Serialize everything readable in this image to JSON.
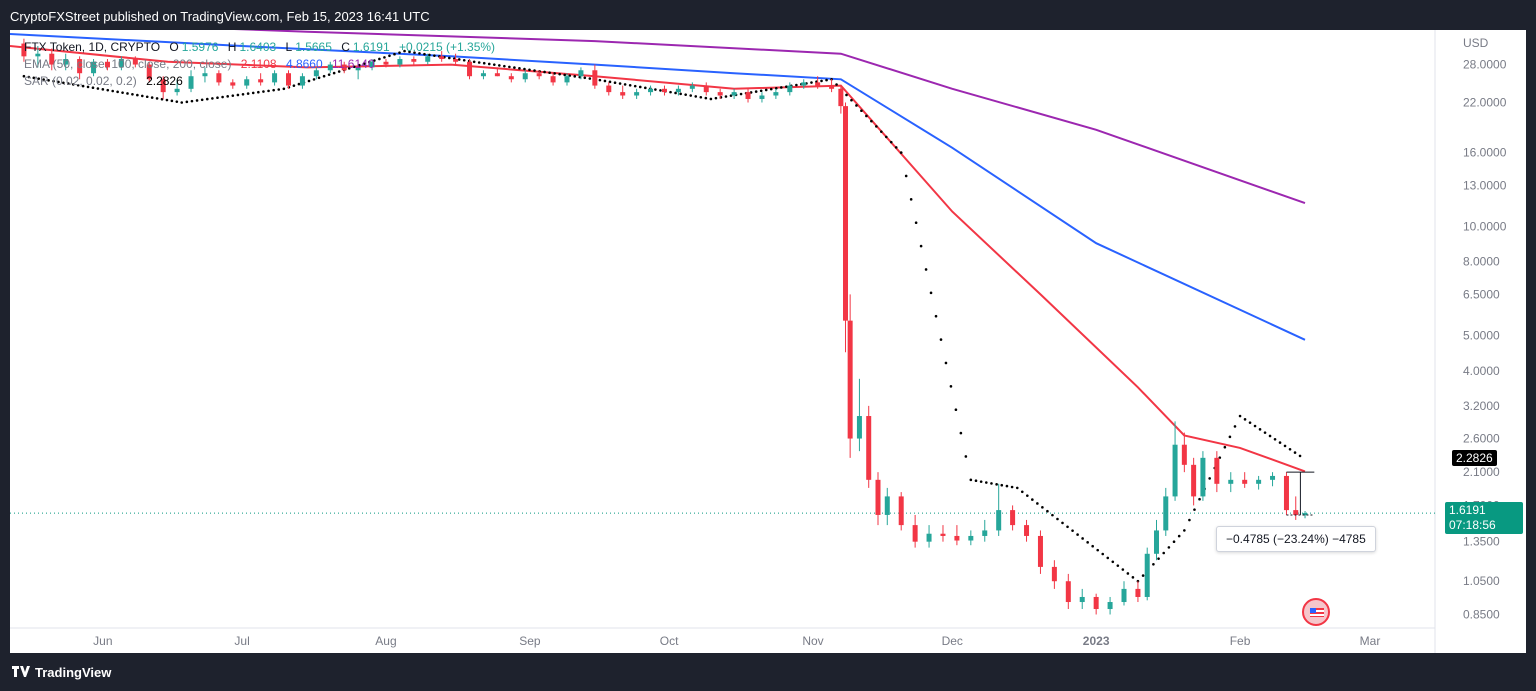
{
  "header": {
    "published_text": "CryptoFXStreet published on TradingView.com, Feb 15, 2023 16:41 UTC"
  },
  "legend": {
    "symbol": "FTX Token, 1D, CRYPTO",
    "ohlc": [
      {
        "k": "O",
        "v": "1.5976"
      },
      {
        "k": "H",
        "v": "1.6403"
      },
      {
        "k": "L",
        "v": "1.5665"
      },
      {
        "k": "C",
        "v": "1.6191"
      }
    ],
    "change": "+0.0215 (+1.35%)",
    "ema_label": "EMA (50, close, 100, close, 200, close)",
    "ema_values": [
      "2.1108",
      "4.8660",
      "11.6140"
    ],
    "sar_label": "SAR (0.02, 0.02, 0.2)",
    "sar_value": "2.2826"
  },
  "axis": {
    "currency": "USD",
    "y_ticks": [
      "28.0000",
      "22.0000",
      "16.0000",
      "13.0000",
      "10.0000",
      "8.0000",
      "6.5000",
      "5.0000",
      "4.0000",
      "3.2000",
      "2.6000",
      "2.1000",
      "1.7000",
      "1.3500",
      "1.0500",
      "0.8500"
    ],
    "x_ticks": [
      "Jun",
      "Jul",
      "Aug",
      "Sep",
      "Oct",
      "Nov",
      "Dec",
      "2023",
      "Feb",
      "Mar"
    ]
  },
  "price_labels": {
    "sar": "2.2826",
    "last": "1.6191",
    "countdown": "07:18:56"
  },
  "measure": {
    "text": "−0.4785 (−23.24%) −4785"
  },
  "footer": {
    "brand": "TradingView"
  },
  "colors": {
    "up": "#26a69a",
    "down": "#f23645",
    "ema50": "#f23645",
    "ema100": "#2962ff",
    "ema200": "#9c27b0",
    "sar": "#000000"
  },
  "chart_data": {
    "type": "candlestick",
    "title": "FTX Token, 1D, CRYPTO",
    "yscale": "log",
    "ylim": [
      0.78,
      34
    ],
    "xlim": [
      "2022-05-12",
      "2023-03-15"
    ],
    "candles": [
      {
        "t": "2022-05-15",
        "o": 32.0,
        "h": 33.0,
        "l": 28.5,
        "c": 29.5
      },
      {
        "t": "2022-05-18",
        "o": 29.5,
        "h": 31.5,
        "l": 27.5,
        "c": 30.0
      },
      {
        "t": "2022-05-21",
        "o": 30.0,
        "h": 31.0,
        "l": 27.0,
        "c": 28.0
      },
      {
        "t": "2022-05-24",
        "o": 28.0,
        "h": 30.0,
        "l": 27.0,
        "c": 29.0
      },
      {
        "t": "2022-05-27",
        "o": 29.0,
        "h": 29.5,
        "l": 25.5,
        "c": 26.5
      },
      {
        "t": "2022-05-30",
        "o": 26.5,
        "h": 29.0,
        "l": 26.0,
        "c": 28.5
      },
      {
        "t": "2022-06-02",
        "o": 28.5,
        "h": 29.0,
        "l": 27.0,
        "c": 27.5
      },
      {
        "t": "2022-06-05",
        "o": 27.5,
        "h": 29.5,
        "l": 27.0,
        "c": 29.0
      },
      {
        "t": "2022-06-08",
        "o": 29.0,
        "h": 29.5,
        "l": 27.5,
        "c": 28.0
      },
      {
        "t": "2022-06-11",
        "o": 28.0,
        "h": 28.5,
        "l": 25.0,
        "c": 25.5
      },
      {
        "t": "2022-06-14",
        "o": 25.5,
        "h": 26.0,
        "l": 22.5,
        "c": 23.5
      },
      {
        "t": "2022-06-17",
        "o": 23.5,
        "h": 25.5,
        "l": 23.0,
        "c": 24.0
      },
      {
        "t": "2022-06-20",
        "o": 24.0,
        "h": 27.0,
        "l": 23.5,
        "c": 26.0
      },
      {
        "t": "2022-06-23",
        "o": 26.0,
        "h": 27.5,
        "l": 25.0,
        "c": 26.5
      },
      {
        "t": "2022-06-26",
        "o": 26.5,
        "h": 27.0,
        "l": 24.5,
        "c": 25.0
      },
      {
        "t": "2022-06-29",
        "o": 25.0,
        "h": 25.5,
        "l": 24.0,
        "c": 24.5
      },
      {
        "t": "2022-07-02",
        "o": 24.5,
        "h": 26.0,
        "l": 24.0,
        "c": 25.5
      },
      {
        "t": "2022-07-05",
        "o": 25.5,
        "h": 26.5,
        "l": 24.5,
        "c": 25.0
      },
      {
        "t": "2022-07-08",
        "o": 25.0,
        "h": 27.0,
        "l": 24.5,
        "c": 26.5
      },
      {
        "t": "2022-07-11",
        "o": 26.5,
        "h": 27.0,
        "l": 24.0,
        "c": 24.5
      },
      {
        "t": "2022-07-14",
        "o": 24.5,
        "h": 26.5,
        "l": 24.0,
        "c": 26.0
      },
      {
        "t": "2022-07-17",
        "o": 26.0,
        "h": 27.5,
        "l": 25.5,
        "c": 27.0
      },
      {
        "t": "2022-07-20",
        "o": 27.0,
        "h": 28.5,
        "l": 26.5,
        "c": 28.0
      },
      {
        "t": "2022-07-23",
        "o": 28.0,
        "h": 28.5,
        "l": 26.5,
        "c": 27.0
      },
      {
        "t": "2022-07-26",
        "o": 27.0,
        "h": 28.0,
        "l": 25.5,
        "c": 27.5
      },
      {
        "t": "2022-07-29",
        "o": 27.5,
        "h": 29.0,
        "l": 27.0,
        "c": 28.5
      },
      {
        "t": "2022-08-01",
        "o": 28.5,
        "h": 29.0,
        "l": 27.5,
        "c": 28.0
      },
      {
        "t": "2022-08-04",
        "o": 28.0,
        "h": 29.5,
        "l": 27.5,
        "c": 29.0
      },
      {
        "t": "2022-08-07",
        "o": 29.0,
        "h": 29.5,
        "l": 28.0,
        "c": 28.5
      },
      {
        "t": "2022-08-10",
        "o": 28.5,
        "h": 30.0,
        "l": 28.0,
        "c": 29.5
      },
      {
        "t": "2022-08-13",
        "o": 29.5,
        "h": 30.5,
        "l": 28.5,
        "c": 29.0
      },
      {
        "t": "2022-08-16",
        "o": 29.0,
        "h": 30.0,
        "l": 28.0,
        "c": 28.5
      },
      {
        "t": "2022-08-19",
        "o": 28.5,
        "h": 29.0,
        "l": 25.5,
        "c": 26.0
      },
      {
        "t": "2022-08-22",
        "o": 26.0,
        "h": 27.0,
        "l": 25.5,
        "c": 26.5
      },
      {
        "t": "2022-08-25",
        "o": 26.5,
        "h": 27.5,
        "l": 26.0,
        "c": 26.0
      },
      {
        "t": "2022-08-28",
        "o": 26.0,
        "h": 26.5,
        "l": 25.0,
        "c": 25.5
      },
      {
        "t": "2022-08-31",
        "o": 25.5,
        "h": 27.0,
        "l": 25.0,
        "c": 26.5
      },
      {
        "t": "2022-09-03",
        "o": 26.5,
        "h": 27.0,
        "l": 25.5,
        "c": 26.0
      },
      {
        "t": "2022-09-06",
        "o": 26.0,
        "h": 26.5,
        "l": 24.5,
        "c": 25.0
      },
      {
        "t": "2022-09-09",
        "o": 25.0,
        "h": 26.5,
        "l": 24.5,
        "c": 26.0
      },
      {
        "t": "2022-09-12",
        "o": 26.0,
        "h": 27.5,
        "l": 25.5,
        "c": 27.0
      },
      {
        "t": "2022-09-15",
        "o": 27.0,
        "h": 28.0,
        "l": 24.0,
        "c": 24.5
      },
      {
        "t": "2022-09-18",
        "o": 24.5,
        "h": 25.0,
        "l": 23.0,
        "c": 23.5
      },
      {
        "t": "2022-09-21",
        "o": 23.5,
        "h": 24.5,
        "l": 22.5,
        "c": 23.0
      },
      {
        "t": "2022-09-24",
        "o": 23.0,
        "h": 24.0,
        "l": 22.5,
        "c": 23.5
      },
      {
        "t": "2022-09-27",
        "o": 23.5,
        "h": 24.5,
        "l": 23.0,
        "c": 24.0
      },
      {
        "t": "2022-09-30",
        "o": 24.0,
        "h": 24.5,
        "l": 23.0,
        "c": 23.5
      },
      {
        "t": "2022-10-03",
        "o": 23.5,
        "h": 24.5,
        "l": 23.0,
        "c": 24.0
      },
      {
        "t": "2022-10-06",
        "o": 24.0,
        "h": 25.0,
        "l": 23.5,
        "c": 24.5
      },
      {
        "t": "2022-10-09",
        "o": 24.5,
        "h": 25.0,
        "l": 23.0,
        "c": 23.5
      },
      {
        "t": "2022-10-12",
        "o": 23.5,
        "h": 24.0,
        "l": 22.5,
        "c": 23.0
      },
      {
        "t": "2022-10-15",
        "o": 23.0,
        "h": 24.0,
        "l": 22.5,
        "c": 23.5
      },
      {
        "t": "2022-10-18",
        "o": 23.5,
        "h": 24.0,
        "l": 22.0,
        "c": 22.5
      },
      {
        "t": "2022-10-21",
        "o": 22.5,
        "h": 23.5,
        "l": 22.0,
        "c": 23.0
      },
      {
        "t": "2022-10-24",
        "o": 23.0,
        "h": 24.0,
        "l": 22.5,
        "c": 23.5
      },
      {
        "t": "2022-10-27",
        "o": 23.5,
        "h": 25.0,
        "l": 23.0,
        "c": 24.5
      },
      {
        "t": "2022-10-30",
        "o": 24.5,
        "h": 25.5,
        "l": 24.0,
        "c": 25.0
      },
      {
        "t": "2022-11-02",
        "o": 25.0,
        "h": 26.0,
        "l": 24.0,
        "c": 24.5
      },
      {
        "t": "2022-11-05",
        "o": 24.5,
        "h": 25.5,
        "l": 23.5,
        "c": 24.0
      },
      {
        "t": "2022-11-07",
        "o": 24.0,
        "h": 24.5,
        "l": 20.5,
        "c": 21.5
      },
      {
        "t": "2022-11-08",
        "o": 21.5,
        "h": 22.0,
        "l": 4.5,
        "c": 5.5
      },
      {
        "t": "2022-11-09",
        "o": 5.5,
        "h": 6.5,
        "l": 2.3,
        "c": 2.6
      },
      {
        "t": "2022-11-11",
        "o": 2.6,
        "h": 3.8,
        "l": 2.4,
        "c": 3.0
      },
      {
        "t": "2022-11-13",
        "o": 3.0,
        "h": 3.2,
        "l": 1.9,
        "c": 2.0
      },
      {
        "t": "2022-11-15",
        "o": 2.0,
        "h": 2.1,
        "l": 1.5,
        "c": 1.6
      },
      {
        "t": "2022-11-17",
        "o": 1.6,
        "h": 1.9,
        "l": 1.5,
        "c": 1.8
      },
      {
        "t": "2022-11-20",
        "o": 1.8,
        "h": 1.85,
        "l": 1.45,
        "c": 1.5
      },
      {
        "t": "2022-11-23",
        "o": 1.5,
        "h": 1.6,
        "l": 1.3,
        "c": 1.35
      },
      {
        "t": "2022-11-26",
        "o": 1.35,
        "h": 1.5,
        "l": 1.3,
        "c": 1.42
      },
      {
        "t": "2022-11-29",
        "o": 1.42,
        "h": 1.5,
        "l": 1.35,
        "c": 1.4
      },
      {
        "t": "2022-12-02",
        "o": 1.4,
        "h": 1.5,
        "l": 1.32,
        "c": 1.36
      },
      {
        "t": "2022-12-05",
        "o": 1.36,
        "h": 1.45,
        "l": 1.32,
        "c": 1.4
      },
      {
        "t": "2022-12-08",
        "o": 1.4,
        "h": 1.55,
        "l": 1.35,
        "c": 1.45
      },
      {
        "t": "2022-12-11",
        "o": 1.45,
        "h": 1.95,
        "l": 1.4,
        "c": 1.65
      },
      {
        "t": "2022-12-14",
        "o": 1.65,
        "h": 1.7,
        "l": 1.45,
        "c": 1.5
      },
      {
        "t": "2022-12-17",
        "o": 1.5,
        "h": 1.55,
        "l": 1.35,
        "c": 1.4
      },
      {
        "t": "2022-12-20",
        "o": 1.4,
        "h": 1.45,
        "l": 1.1,
        "c": 1.15
      },
      {
        "t": "2022-12-23",
        "o": 1.15,
        "h": 1.2,
        "l": 1.0,
        "c": 1.05
      },
      {
        "t": "2022-12-26",
        "o": 1.05,
        "h": 1.1,
        "l": 0.88,
        "c": 0.92
      },
      {
        "t": "2022-12-29",
        "o": 0.92,
        "h": 1.0,
        "l": 0.88,
        "c": 0.95
      },
      {
        "t": "2023-01-01",
        "o": 0.95,
        "h": 0.97,
        "l": 0.85,
        "c": 0.88
      },
      {
        "t": "2023-01-04",
        "o": 0.88,
        "h": 0.95,
        "l": 0.85,
        "c": 0.92
      },
      {
        "t": "2023-01-07",
        "o": 0.92,
        "h": 1.05,
        "l": 0.9,
        "c": 1.0
      },
      {
        "t": "2023-01-10",
        "o": 1.0,
        "h": 1.05,
        "l": 0.92,
        "c": 0.95
      },
      {
        "t": "2023-01-12",
        "o": 0.95,
        "h": 1.3,
        "l": 0.93,
        "c": 1.25
      },
      {
        "t": "2023-01-14",
        "o": 1.25,
        "h": 1.55,
        "l": 1.2,
        "c": 1.45
      },
      {
        "t": "2023-01-16",
        "o": 1.45,
        "h": 1.9,
        "l": 1.4,
        "c": 1.8
      },
      {
        "t": "2023-01-18",
        "o": 1.8,
        "h": 2.9,
        "l": 1.75,
        "c": 2.5
      },
      {
        "t": "2023-01-20",
        "o": 2.5,
        "h": 2.7,
        "l": 2.1,
        "c": 2.2
      },
      {
        "t": "2023-01-22",
        "o": 2.2,
        "h": 2.3,
        "l": 1.7,
        "c": 1.8
      },
      {
        "t": "2023-01-24",
        "o": 1.8,
        "h": 2.4,
        "l": 1.75,
        "c": 2.3
      },
      {
        "t": "2023-01-27",
        "o": 2.3,
        "h": 2.4,
        "l": 1.85,
        "c": 1.95
      },
      {
        "t": "2023-01-30",
        "o": 1.95,
        "h": 2.1,
        "l": 1.85,
        "c": 2.0
      },
      {
        "t": "2023-02-02",
        "o": 2.0,
        "h": 2.1,
        "l": 1.9,
        "c": 1.95
      },
      {
        "t": "2023-02-05",
        "o": 1.95,
        "h": 2.05,
        "l": 1.88,
        "c": 2.0
      },
      {
        "t": "2023-02-08",
        "o": 2.0,
        "h": 2.1,
        "l": 1.92,
        "c": 2.05
      },
      {
        "t": "2023-02-11",
        "o": 2.05,
        "h": 2.1,
        "l": 1.6,
        "c": 1.65
      },
      {
        "t": "2023-02-13",
        "o": 1.65,
        "h": 1.8,
        "l": 1.55,
        "c": 1.6
      },
      {
        "t": "2023-02-15",
        "o": 1.5976,
        "h": 1.6403,
        "l": 1.5665,
        "c": 1.6191
      }
    ],
    "series": [
      {
        "name": "EMA 50",
        "points": [
          [
            "2022-05-12",
            31.5
          ],
          [
            "2022-06-15",
            28.5
          ],
          [
            "2022-07-15",
            27.5
          ],
          [
            "2022-08-15",
            28.0
          ],
          [
            "2022-09-15",
            26.0
          ],
          [
            "2022-10-15",
            24.0
          ],
          [
            "2022-11-07",
            24.5
          ],
          [
            "2022-12-01",
            11.0
          ],
          [
            "2022-12-20",
            6.5
          ],
          [
            "2023-01-10",
            3.6
          ],
          [
            "2023-01-20",
            2.65
          ],
          [
            "2023-02-01",
            2.45
          ],
          [
            "2023-02-15",
            2.11
          ]
        ]
      },
      {
        "name": "EMA 100",
        "points": [
          [
            "2022-05-12",
            34.0
          ],
          [
            "2022-07-01",
            31.5
          ],
          [
            "2022-08-15",
            29.5
          ],
          [
            "2022-09-15",
            28.0
          ],
          [
            "2022-10-15",
            26.5
          ],
          [
            "2022-11-07",
            25.5
          ],
          [
            "2022-12-01",
            16.5
          ],
          [
            "2023-01-01",
            9.0
          ],
          [
            "2023-02-15",
            4.87
          ]
        ]
      },
      {
        "name": "EMA 200",
        "points": [
          [
            "2022-05-12",
            37.0
          ],
          [
            "2022-07-15",
            34.5
          ],
          [
            "2022-09-15",
            32.5
          ],
          [
            "2022-11-07",
            30.0
          ],
          [
            "2022-12-01",
            24.0
          ],
          [
            "2023-01-01",
            18.5
          ],
          [
            "2023-02-15",
            11.61
          ]
        ]
      },
      {
        "name": "SAR",
        "points": [
          [
            "2022-05-15",
            26.0
          ],
          [
            "2022-06-18",
            22.0
          ],
          [
            "2022-07-10",
            24.0
          ],
          [
            "2022-08-05",
            30.5
          ],
          [
            "2022-08-20",
            28.5
          ],
          [
            "2022-09-15",
            25.5
          ],
          [
            "2022-10-10",
            22.5
          ],
          [
            "2022-11-05",
            25.5
          ],
          [
            "2022-11-20",
            16.0
          ],
          [
            "2022-12-05",
            2.0
          ],
          [
            "2022-12-15",
            1.9
          ],
          [
            "2023-01-10",
            1.05
          ],
          [
            "2023-01-20",
            1.45
          ],
          [
            "2023-02-01",
            3.0
          ],
          [
            "2023-02-15",
            2.28
          ]
        ]
      }
    ],
    "legend": [
      "EMA (50, close, 100, close, 200, close)",
      "SAR (0.02, 0.02, 0.2)"
    ]
  }
}
